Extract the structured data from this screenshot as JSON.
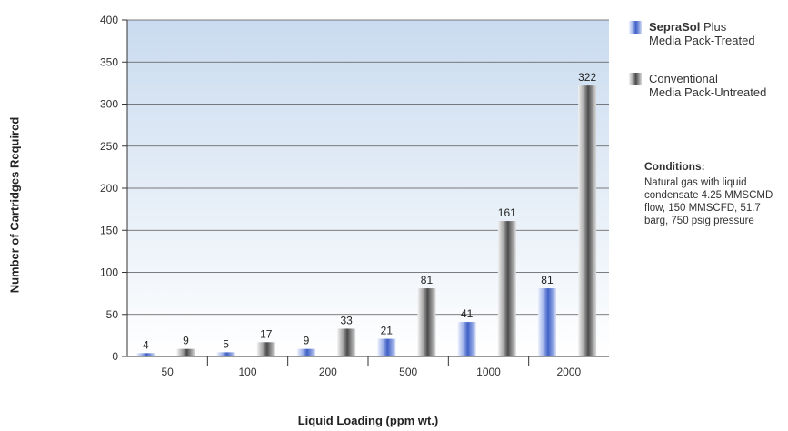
{
  "chart_data": {
    "type": "bar",
    "categories": [
      "50",
      "100",
      "200",
      "500",
      "1000",
      "2000"
    ],
    "series": [
      {
        "name": "SepraSol Plus Media Pack-Treated",
        "values": [
          4,
          5,
          9,
          21,
          41,
          81
        ]
      },
      {
        "name": "Conventional Media Pack-Untreated",
        "values": [
          9,
          17,
          33,
          81,
          161,
          322
        ]
      }
    ],
    "data_labels": {
      "series_0": [
        "4",
        "5",
        "9",
        "21",
        "41",
        "81"
      ],
      "series_1": [
        "9",
        "17",
        "33",
        "81",
        "161",
        "322"
      ]
    },
    "ylabel": "Number of Cartridges Required",
    "xlabel": "Liquid Loading (ppm wt.)",
    "ylim": [
      0,
      400
    ],
    "yticks": [
      "0",
      "50",
      "100",
      "150",
      "200",
      "250",
      "300",
      "350",
      "400"
    ],
    "grid": true,
    "legend_position": "right",
    "colors": {
      "series_0": "#4a68c9",
      "series_1": "#5a5a5a",
      "plot_top": "#c9dbef",
      "plot_bottom": "#ffffff"
    }
  },
  "legend": {
    "item1_brand": "SepraSol",
    "item1_rest": " Plus",
    "item1_line2": "Media Pack-Treated",
    "item2_line1": "Conventional",
    "item2_line2": "Media Pack-Untreated"
  },
  "conditions": {
    "title": "Conditions:",
    "text": "Natural gas with liquid condensate 4.25 MMSCMD flow, 150 MMSCFD, 51.7 barg, 750 psig pressure"
  }
}
